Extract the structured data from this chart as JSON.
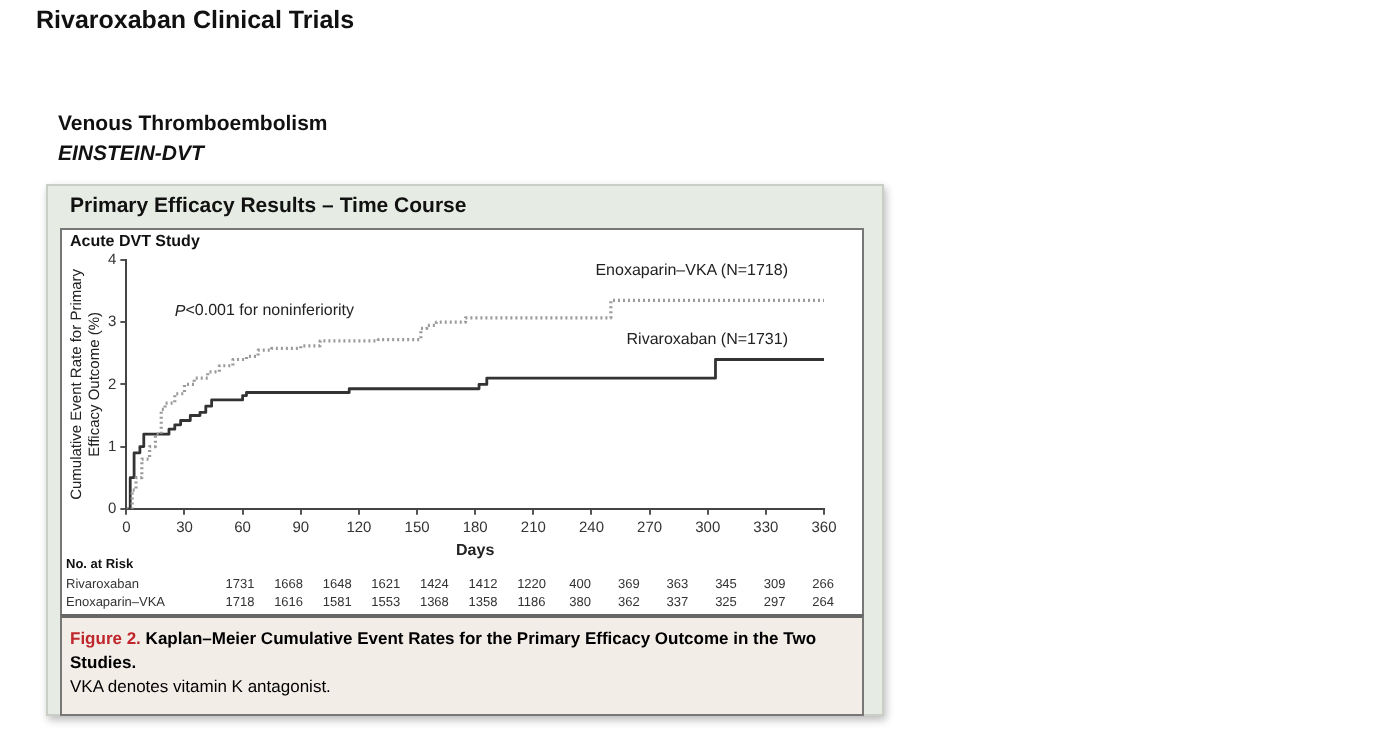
{
  "chart_data": {
    "type": "step",
    "title": "Rivaroxaban Clinical Trials",
    "subtitle": "Venous Thromboembolism",
    "xlabel": "Days",
    "ylabel": "Cumulative Event Rate for Primary\nEfficacy Outcome (%)",
    "annotations": [
      "EINSTEIN-DVT",
      "Primary Efficacy Results – Time Course",
      "Acute DVT Study",
      "P<0.001 for noninferiority",
      "No. at Risk",
      "Rivaroxaban 1731 1668 1648 1621 1424 1412 1220 400 369 363 345 309 266",
      "Enoxaparin–VKA 1718 1616 1581 1553 1368 1358 1186 380 362 337 325 297 264",
      "Figure 2.",
      "Kaplan–Meier Cumulative Event Rates for the Primary Efficacy Outcome in the Two Studies.",
      "VKA denotes vitamin K antagonist."
    ],
    "xlim": [
      0,
      360
    ],
    "xticks": [
      0,
      30,
      60,
      90,
      120,
      150,
      180,
      210,
      240,
      270,
      300,
      330,
      360
    ],
    "ylim": [
      0,
      4
    ],
    "yticks": [
      0,
      1,
      2,
      3,
      4
    ],
    "grid": false,
    "legend": false,
    "marker": "none",
    "series": [
      {
        "name": "Enoxaparin–VKA (N=1718)",
        "color": "#9a9a9a",
        "line_style": "dotted",
        "x": [
          0,
          3,
          5,
          8,
          12,
          15,
          18,
          20,
          25,
          30,
          35,
          42,
          48,
          55,
          62,
          68,
          75,
          90,
          100,
          130,
          152,
          155,
          160,
          175,
          250,
          360
        ],
        "values": [
          0,
          0.3,
          0.5,
          0.8,
          1.0,
          1.2,
          1.6,
          1.7,
          1.85,
          2.0,
          2.1,
          2.2,
          2.3,
          2.4,
          2.45,
          2.55,
          2.58,
          2.62,
          2.7,
          2.72,
          2.9,
          2.95,
          3.0,
          3.07,
          3.35,
          3.35
        ]
      },
      {
        "name": "Rivaroxaban (N=1731)",
        "color": "#333333",
        "line_style": "solid",
        "x": [
          0,
          2,
          4,
          7,
          9,
          22,
          25,
          28,
          33,
          38,
          41,
          44,
          60,
          62,
          115,
          182,
          186,
          304,
          360
        ],
        "values": [
          0,
          0.5,
          0.9,
          1.0,
          1.2,
          1.28,
          1.35,
          1.42,
          1.5,
          1.55,
          1.65,
          1.75,
          1.82,
          1.87,
          1.93,
          2.0,
          2.1,
          2.4,
          2.4
        ]
      }
    ]
  }
}
